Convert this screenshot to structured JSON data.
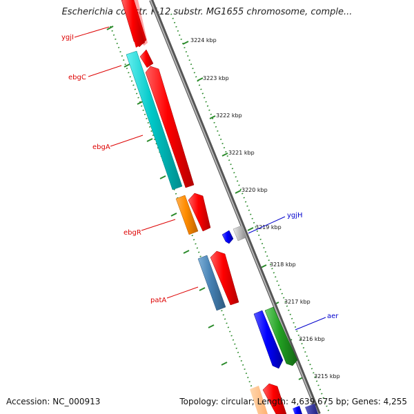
{
  "map": {
    "title": "Escherichia coli str. K-12 substr. MG1655 chromosome, comple..."
  },
  "ruler": {
    "ticks": [
      "3224 kbp",
      "3223 kbp",
      "3222 kbp",
      "3221 kbp",
      "3220 kbp",
      "3219 kbp",
      "3218 kbp",
      "3217 kbp",
      "3216 kbp",
      "3215 kbp"
    ]
  },
  "genes": {
    "labels_reverse": [
      "ygjI",
      "ebgC",
      "ebgA",
      "ebgR",
      "patA"
    ],
    "labels_forward": [
      "ygjH",
      "aer"
    ]
  },
  "colors": {
    "label_reverse": "#dd0000",
    "label_forward": "#0000cc",
    "backbone": "#808080",
    "tick_dots": "#2a8a2a",
    "cds_red": "#ff0000",
    "cds_cyan": "#00c8c8",
    "cds_orange": "#ff8c00",
    "cds_steelblue": "#4682b4",
    "cds_blue": "#0000ff",
    "cds_green": "#22a022",
    "cds_gray": "#b8b8b8"
  },
  "footer": {
    "accession": "Accession: NC_000913",
    "summary": "Topology: circular; Length: 4,639,675 bp; Genes: 4,255"
  }
}
